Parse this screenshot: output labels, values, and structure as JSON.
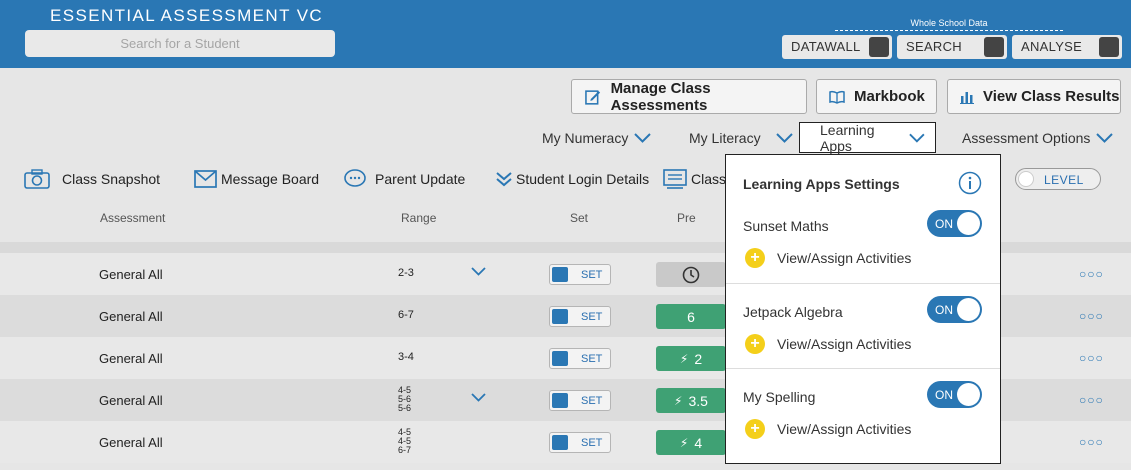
{
  "header": {
    "title": "ESSENTIAL ASSESSMENT VC",
    "search_placeholder": "Search for a Student",
    "whole_school_label": "Whole School Data",
    "toggles": [
      "DATAWALL",
      "SEARCH",
      "ANALYSE"
    ]
  },
  "actions": {
    "manage": "Manage Class Assessments",
    "markbook": "Markbook",
    "results": "View Class Results"
  },
  "menus": {
    "numeracy": "My Numeracy",
    "literacy": "My Literacy",
    "learning_apps": "Learning Apps",
    "assessment_options": "Assessment Options"
  },
  "toolbar": {
    "snapshot": "Class Snapshot",
    "message_board": "Message Board",
    "parent_update": "Parent Update",
    "login_details": "Student Login Details",
    "class_partial": "Class",
    "level": "LEVEL"
  },
  "table": {
    "headers": {
      "assessment": "Assessment",
      "range": "Range",
      "set": "Set",
      "pre": "Pre"
    },
    "set_label": "SET",
    "rows": [
      {
        "assessment": "General All",
        "range": [
          "2-3"
        ],
        "pre": "",
        "pre_kind": "pending",
        "has_chevron": true
      },
      {
        "assessment": "General All",
        "range": [
          "6-7"
        ],
        "pre": "6",
        "pre_kind": "score",
        "has_chevron": false
      },
      {
        "assessment": "General All",
        "range": [
          "3-4"
        ],
        "pre": "2",
        "pre_kind": "bolt",
        "has_chevron": false
      },
      {
        "assessment": "General All",
        "range": [
          "4-5",
          "5-6",
          "5-6"
        ],
        "pre": "3.5",
        "pre_kind": "bolt",
        "has_chevron": true
      },
      {
        "assessment": "General All",
        "range": [
          "4-5",
          "4-5",
          "6-7"
        ],
        "pre": "4",
        "pre_kind": "bolt",
        "has_chevron": false
      }
    ]
  },
  "popup": {
    "title": "Learning Apps Settings",
    "apps": [
      {
        "name": "Sunset Maths",
        "toggle": "ON",
        "action": "View/Assign Activities"
      },
      {
        "name": "Jetpack Algebra",
        "toggle": "ON",
        "action": "View/Assign Activities"
      },
      {
        "name": "My Spelling",
        "toggle": "ON",
        "action": "View/Assign Activities"
      }
    ]
  },
  "colors": {
    "brand": "#2a77b4",
    "score_green": "#3fa174",
    "plus_yellow": "#f4cf1a"
  }
}
